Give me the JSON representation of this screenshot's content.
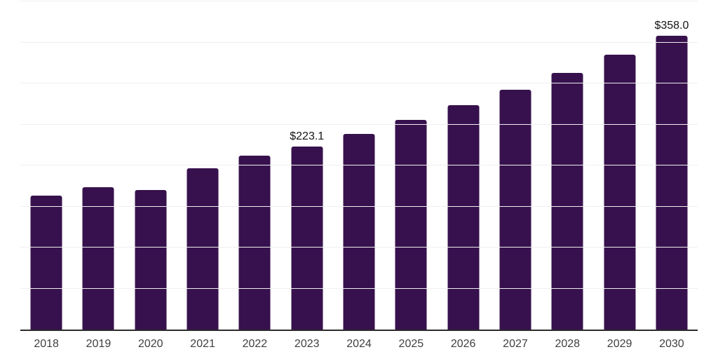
{
  "chart_data": {
    "type": "bar",
    "title": "",
    "xlabel": "",
    "ylabel": "",
    "categories": [
      "2018",
      "2019",
      "2020",
      "2021",
      "2022",
      "2023",
      "2024",
      "2025",
      "2026",
      "2027",
      "2028",
      "2029",
      "2030"
    ],
    "values": [
      163.0,
      173.2,
      170.0,
      197.0,
      211.9,
      223.1,
      238.7,
      255.4,
      273.3,
      292.4,
      312.9,
      334.8,
      358.0
    ],
    "value_labels": [
      "",
      "",
      "",
      "",
      "",
      "$223.1",
      "",
      "",
      "",
      "",
      "",
      "",
      "$358.0"
    ],
    "ylim": [
      0,
      400
    ],
    "gridline_step": 50,
    "grid": true,
    "legend_position": "none",
    "y_axis_tick_labels_visible": false,
    "colors": {
      "bar": "#37114D",
      "gridline": "#EFEFEF",
      "axis_line": "#2B2B2B",
      "tick_label": "#404040",
      "value_label": "#141414",
      "background": "#FFFFFF"
    }
  }
}
